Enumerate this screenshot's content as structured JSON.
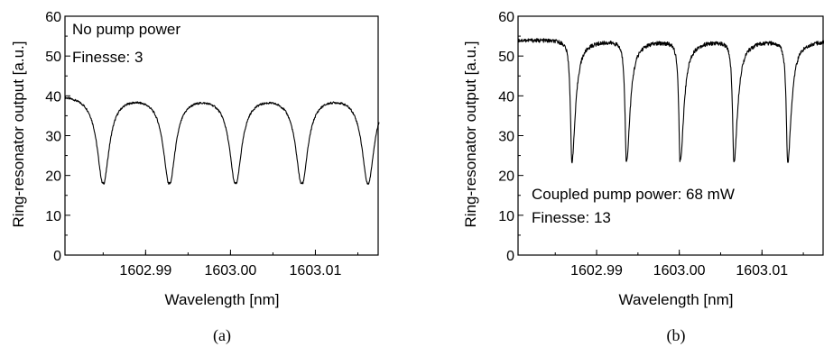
{
  "chart_data": [
    {
      "type": "line",
      "panel_label": "(a)",
      "xlabel": "Wavelength [nm]",
      "ylabel": "Ring-resonator output [a.u.]",
      "xlim": [
        1602.9805,
        1603.0175
      ],
      "ylim": [
        0,
        60
      ],
      "x_ticks": [
        1602.99,
        1603.0,
        1603.01
      ],
      "x_tick_labels": [
        "1602.99",
        "1603.00",
        "1603.01"
      ],
      "y_ticks": [
        0,
        10,
        20,
        30,
        40,
        50,
        60
      ],
      "y_tick_labels": [
        "0",
        "10",
        "20",
        "30",
        "40",
        "50",
        "60"
      ],
      "annotations": [
        "No pump power",
        "Finesse: 3"
      ],
      "grid": false,
      "series": [
        {
          "profile": "lorentzian-dips",
          "baseline": 40.5,
          "dip_minimum": 18.5,
          "dip_halfwidth_nm": 0.00085,
          "dip_centers": [
            1602.985,
            1602.9928,
            1603.0006,
            1603.0084,
            1603.0162
          ],
          "x_start": 1602.9805,
          "x_end": 1603.0175
        }
      ]
    },
    {
      "type": "line",
      "panel_label": "(b)",
      "xlabel": "Wavelength [nm]",
      "ylabel": "Ring-resonator output [a.u.]",
      "xlim": [
        1602.9805,
        1603.0175
      ],
      "ylim": [
        0,
        60
      ],
      "x_ticks": [
        1602.99,
        1603.0,
        1603.01
      ],
      "x_tick_labels": [
        "1602.99",
        "1603.00",
        "1603.01"
      ],
      "y_ticks": [
        0,
        10,
        20,
        30,
        40,
        50,
        60
      ],
      "y_tick_labels": [
        "0",
        "10",
        "20",
        "30",
        "40",
        "50",
        "60"
      ],
      "annotations": [
        "Coupled pump power: 68 mW",
        "Finesse: 13"
      ],
      "grid": false,
      "series": [
        {
          "profile": "sharp-dips",
          "baseline": 54,
          "dip_minimum": 23.5,
          "dip_halfwidth_nm": 0.00022,
          "dip_centers": [
            1602.987,
            1602.9936,
            1603.0001,
            1603.0066,
            1603.0131
          ],
          "x_start": 1602.9805,
          "x_end": 1603.0175
        }
      ]
    }
  ]
}
